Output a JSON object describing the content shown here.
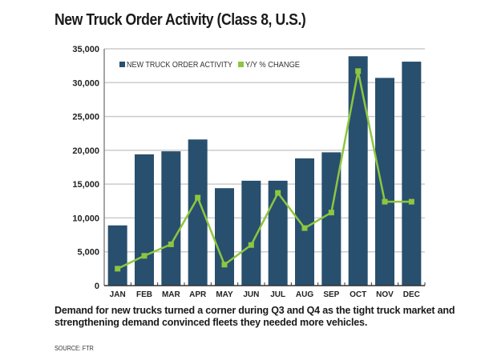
{
  "title": "New Truck Order Activity (Class 8, U.S.)",
  "caption": "Demand for new trucks turned a corner during Q3 and Q4 as the tight truck market and strengthening demand convinced fleets they needed more vehicles.",
  "source": "SOURCE: FTR",
  "colors": {
    "bar": "#284f6e",
    "line": "#8dc63f",
    "grid": "#cccccc",
    "axis": "#888888"
  },
  "chart_data": {
    "type": "bar",
    "title": "New Truck Order Activity (Class 8, U.S.)",
    "xlabel": "",
    "ylabel": "",
    "ylim": [
      0,
      35000
    ],
    "yticks": [
      0,
      5000,
      10000,
      15000,
      20000,
      25000,
      30000,
      35000
    ],
    "ytick_labels": [
      "0",
      "5,000",
      "10,000",
      "15,000",
      "20,000",
      "25,000",
      "30,000",
      "35,000"
    ],
    "grid": true,
    "legend_position": "top-left",
    "categories": [
      "JAN",
      "FEB",
      "MAR",
      "APR",
      "MAY",
      "JUN",
      "JUL",
      "AUG",
      "SEP",
      "OCT",
      "NOV",
      "DEC"
    ],
    "series": [
      {
        "name": "NEW TRUCK ORDER ACTIVITY",
        "type": "bar",
        "values": [
          8900,
          19400,
          19850,
          21600,
          14400,
          15500,
          15500,
          18800,
          19700,
          33900,
          30700,
          33100
        ]
      },
      {
        "name": "Y/Y % CHANGE",
        "type": "line",
        "values": [
          2500,
          4400,
          6100,
          13000,
          3100,
          6000,
          13700,
          8500,
          10800,
          31700,
          12400,
          12400
        ]
      }
    ]
  }
}
